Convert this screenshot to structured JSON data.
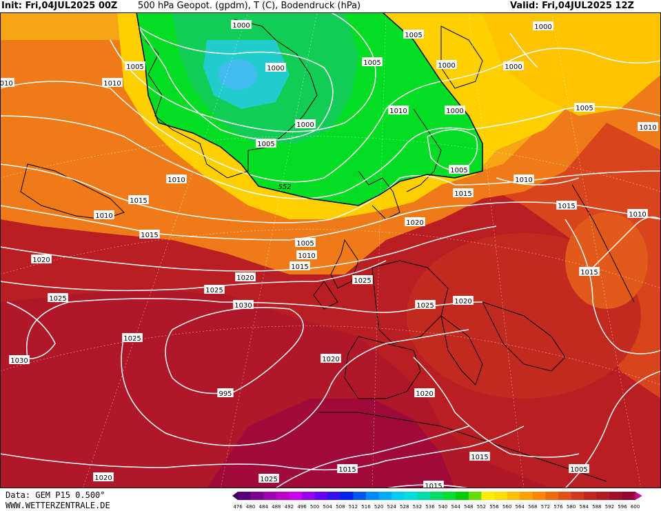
{
  "header": {
    "init": "Init: Fri,04JUL2025 00Z",
    "title": "500 hPa Geopot. (gpdm), T (C), Bodendruck (hPa)",
    "valid": "Valid: Fri,04JUL2025 12Z"
  },
  "footer": {
    "data_source": "Data: GEM P15 0.500°",
    "website": "WWW.WETTERZENTRALE.DE"
  },
  "colors": {
    "green_low": "#00dd22",
    "cyan_core": "#33ccdd",
    "yellow": "#ffdd00",
    "orange": "#f28a1a",
    "red_orange": "#d8441c",
    "red": "#c02620",
    "deep_red": "#a81424",
    "magenta_red": "#9a0838",
    "isobar": "#ffffff"
  },
  "map": {
    "pressure_labels": [
      {
        "text": "1000"
      },
      {
        "text": "1000"
      },
      {
        "text": "1000"
      },
      {
        "text": "1000"
      },
      {
        "text": "1000"
      },
      {
        "text": "1000"
      },
      {
        "text": "1000"
      },
      {
        "text": "1005"
      },
      {
        "text": "1005"
      },
      {
        "text": "1005"
      },
      {
        "text": "1005"
      },
      {
        "text": "1005"
      },
      {
        "text": "1005"
      },
      {
        "text": "1005"
      },
      {
        "text": "1010"
      },
      {
        "text": "1010"
      },
      {
        "text": "1010"
      },
      {
        "text": "1010"
      },
      {
        "text": "1010"
      },
      {
        "text": "1010"
      },
      {
        "text": "1010"
      },
      {
        "text": "1010"
      },
      {
        "text": "1010"
      },
      {
        "text": "1015"
      },
      {
        "text": "1015"
      },
      {
        "text": "1015"
      },
      {
        "text": "1015"
      },
      {
        "text": "1015"
      },
      {
        "text": "1015"
      },
      {
        "text": "1015"
      },
      {
        "text": "1015"
      },
      {
        "text": "1020"
      },
      {
        "text": "1020"
      },
      {
        "text": "1020"
      },
      {
        "text": "1020"
      },
      {
        "text": "1020"
      },
      {
        "text": "1020"
      },
      {
        "text": "1020"
      },
      {
        "text": "1025"
      },
      {
        "text": "1025"
      },
      {
        "text": "1025"
      },
      {
        "text": "1025"
      },
      {
        "text": "1025"
      },
      {
        "text": "1025"
      },
      {
        "text": "1030"
      },
      {
        "text": "1030"
      },
      {
        "text": "995"
      },
      {
        "text": "1015"
      },
      {
        "text": "1005"
      }
    ],
    "geopot_labels": [
      "552"
    ]
  },
  "scale": {
    "values": [
      "476",
      "480",
      "484",
      "488",
      "492",
      "496",
      "500",
      "504",
      "508",
      "512",
      "516",
      "520",
      "524",
      "528",
      "532",
      "536",
      "540",
      "544",
      "548",
      "552",
      "556",
      "560",
      "564",
      "568",
      "572",
      "576",
      "580",
      "584",
      "588",
      "592",
      "596",
      "600"
    ],
    "colors": [
      "#3a0060",
      "#55007a",
      "#7a0090",
      "#9c00b0",
      "#bb00cc",
      "#cc00ee",
      "#9900ee",
      "#6600ee",
      "#3311ee",
      "#0022ee",
      "#0055ee",
      "#0088ff",
      "#00aaff",
      "#00ccee",
      "#00dddd",
      "#00ddaa",
      "#00dd66",
      "#00dd33",
      "#00cc00",
      "#66dd00",
      "#ffee00",
      "#ffdd00",
      "#ffc000",
      "#ffa000",
      "#ff8800",
      "#f06a10",
      "#e05018",
      "#d03a1c",
      "#c0261e",
      "#b01a22",
      "#a00e2a",
      "#900632",
      "#cc0099"
    ]
  }
}
